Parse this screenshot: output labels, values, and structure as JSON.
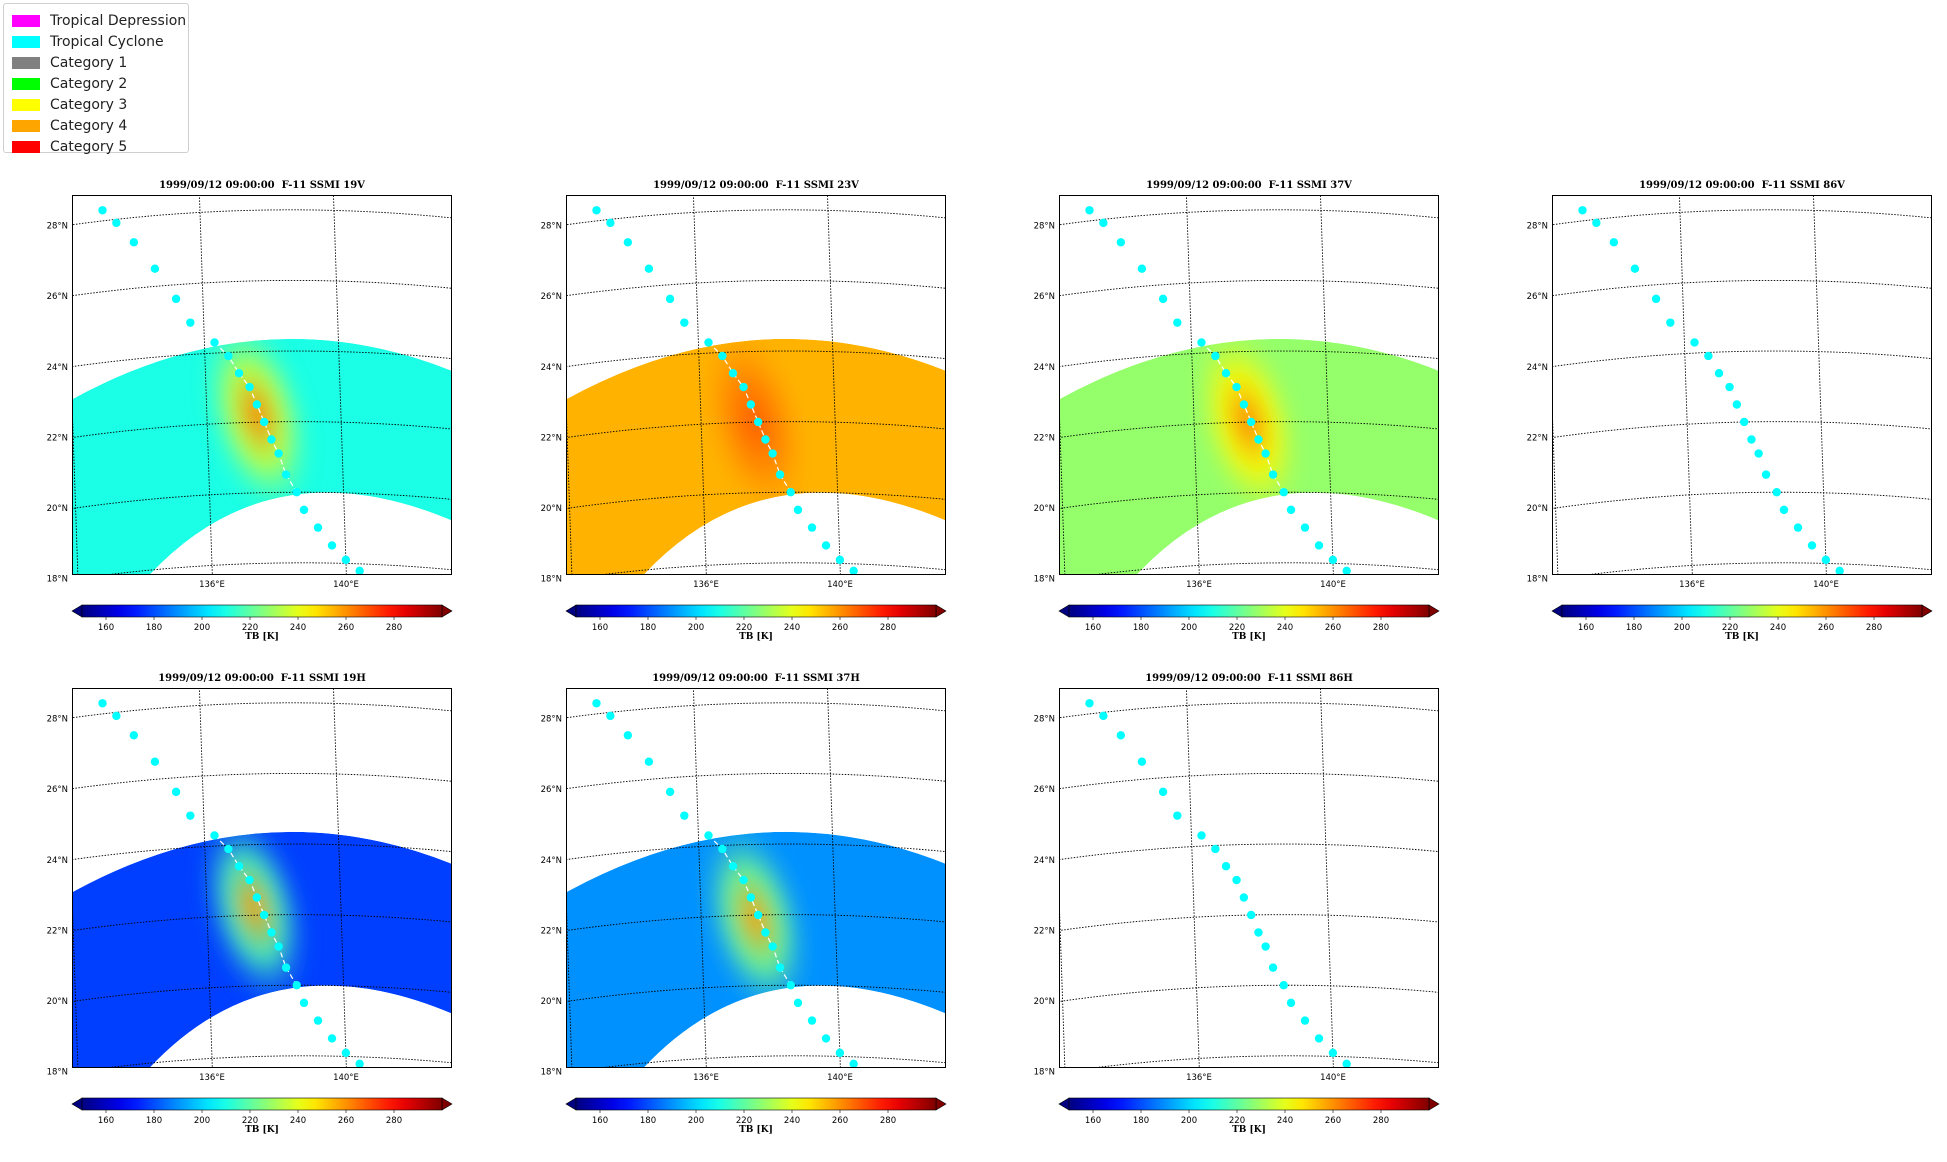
{
  "legend": {
    "items": [
      {
        "label": "Tropical Depression",
        "color": "#ff00ff"
      },
      {
        "label": "Tropical Cyclone",
        "color": "#00ffff"
      },
      {
        "label": "Category 1",
        "color": "#808080"
      },
      {
        "label": "Category 2",
        "color": "#00ff00"
      },
      {
        "label": "Category 3",
        "color": "#ffff00"
      },
      {
        "label": "Category 4",
        "color": "#ffa500"
      },
      {
        "label": "Category 5",
        "color": "#ff0000"
      }
    ]
  },
  "chart_data": {
    "type": "map",
    "track": {
      "category": "Tropical Cyclone",
      "color": "#00ffff",
      "points": [
        {
          "lon": 133.1,
          "lat": 28.3
        },
        {
          "lon": 133.5,
          "lat": 27.9
        },
        {
          "lon": 134.0,
          "lat": 27.3
        },
        {
          "lon": 134.6,
          "lat": 26.5
        },
        {
          "lon": 135.2,
          "lat": 25.6
        },
        {
          "lon": 135.6,
          "lat": 24.9
        },
        {
          "lon": 136.3,
          "lat": 24.3
        },
        {
          "lon": 136.7,
          "lat": 23.9
        },
        {
          "lon": 137.0,
          "lat": 23.4
        },
        {
          "lon": 137.3,
          "lat": 23.0
        },
        {
          "lon": 137.5,
          "lat": 22.5
        },
        {
          "lon": 137.7,
          "lat": 22.0
        },
        {
          "lon": 137.9,
          "lat": 21.5
        },
        {
          "lon": 138.1,
          "lat": 21.1
        },
        {
          "lon": 138.3,
          "lat": 20.5
        },
        {
          "lon": 138.6,
          "lat": 20.0
        },
        {
          "lon": 138.8,
          "lat": 19.5
        },
        {
          "lon": 139.2,
          "lat": 19.0
        },
        {
          "lon": 139.6,
          "lat": 18.5
        },
        {
          "lon": 140.0,
          "lat": 18.1
        },
        {
          "lon": 140.4,
          "lat": 17.8
        }
      ]
    },
    "map_extent": {
      "lon": [
        132.0,
        143.5
      ],
      "lat": [
        17.7,
        28.4
      ]
    },
    "lat_ticks": [
      "18°N",
      "20°N",
      "22°N",
      "24°N",
      "26°N",
      "28°N"
    ],
    "lon_ticks": [
      "136°E",
      "140°E"
    ],
    "colorbar": {
      "label": "TB [K]",
      "ticks": [
        "160",
        "180",
        "200",
        "220",
        "240",
        "260",
        "280"
      ],
      "range": [
        150,
        300
      ],
      "extend": "both",
      "colormap": "jet"
    },
    "panels": [
      {
        "title": "1999/09/12 09:00:00  F-11 SSMI 19V",
        "swath": true,
        "bg_tb": 210,
        "core_tb": 262,
        "core_lon": 137.5,
        "core_lat": 22.2
      },
      {
        "title": "1999/09/12 09:00:00  F-11 SSMI 23V",
        "swath": true,
        "bg_tb": 255,
        "core_tb": 268,
        "core_lon": 137.6,
        "core_lat": 22.0
      },
      {
        "title": "1999/09/12 09:00:00  F-11 SSMI 37V",
        "swath": true,
        "bg_tb": 228,
        "core_tb": 262,
        "core_lon": 137.6,
        "core_lat": 22.0
      },
      {
        "title": "1999/09/12 09:00:00  F-11 SSMI 86V",
        "swath": false
      },
      {
        "title": "1999/09/12 09:00:00  F-11 SSMI 19H",
        "swath": true,
        "bg_tb": 178,
        "core_tb": 258,
        "core_lon": 137.4,
        "core_lat": 22.2
      },
      {
        "title": "1999/09/12 09:00:00  F-11 SSMI 37H",
        "swath": true,
        "bg_tb": 190,
        "core_tb": 258,
        "core_lon": 137.6,
        "core_lat": 21.9
      },
      {
        "title": "1999/09/12 09:00:00  F-11 SSMI 86H",
        "swath": false
      }
    ]
  }
}
